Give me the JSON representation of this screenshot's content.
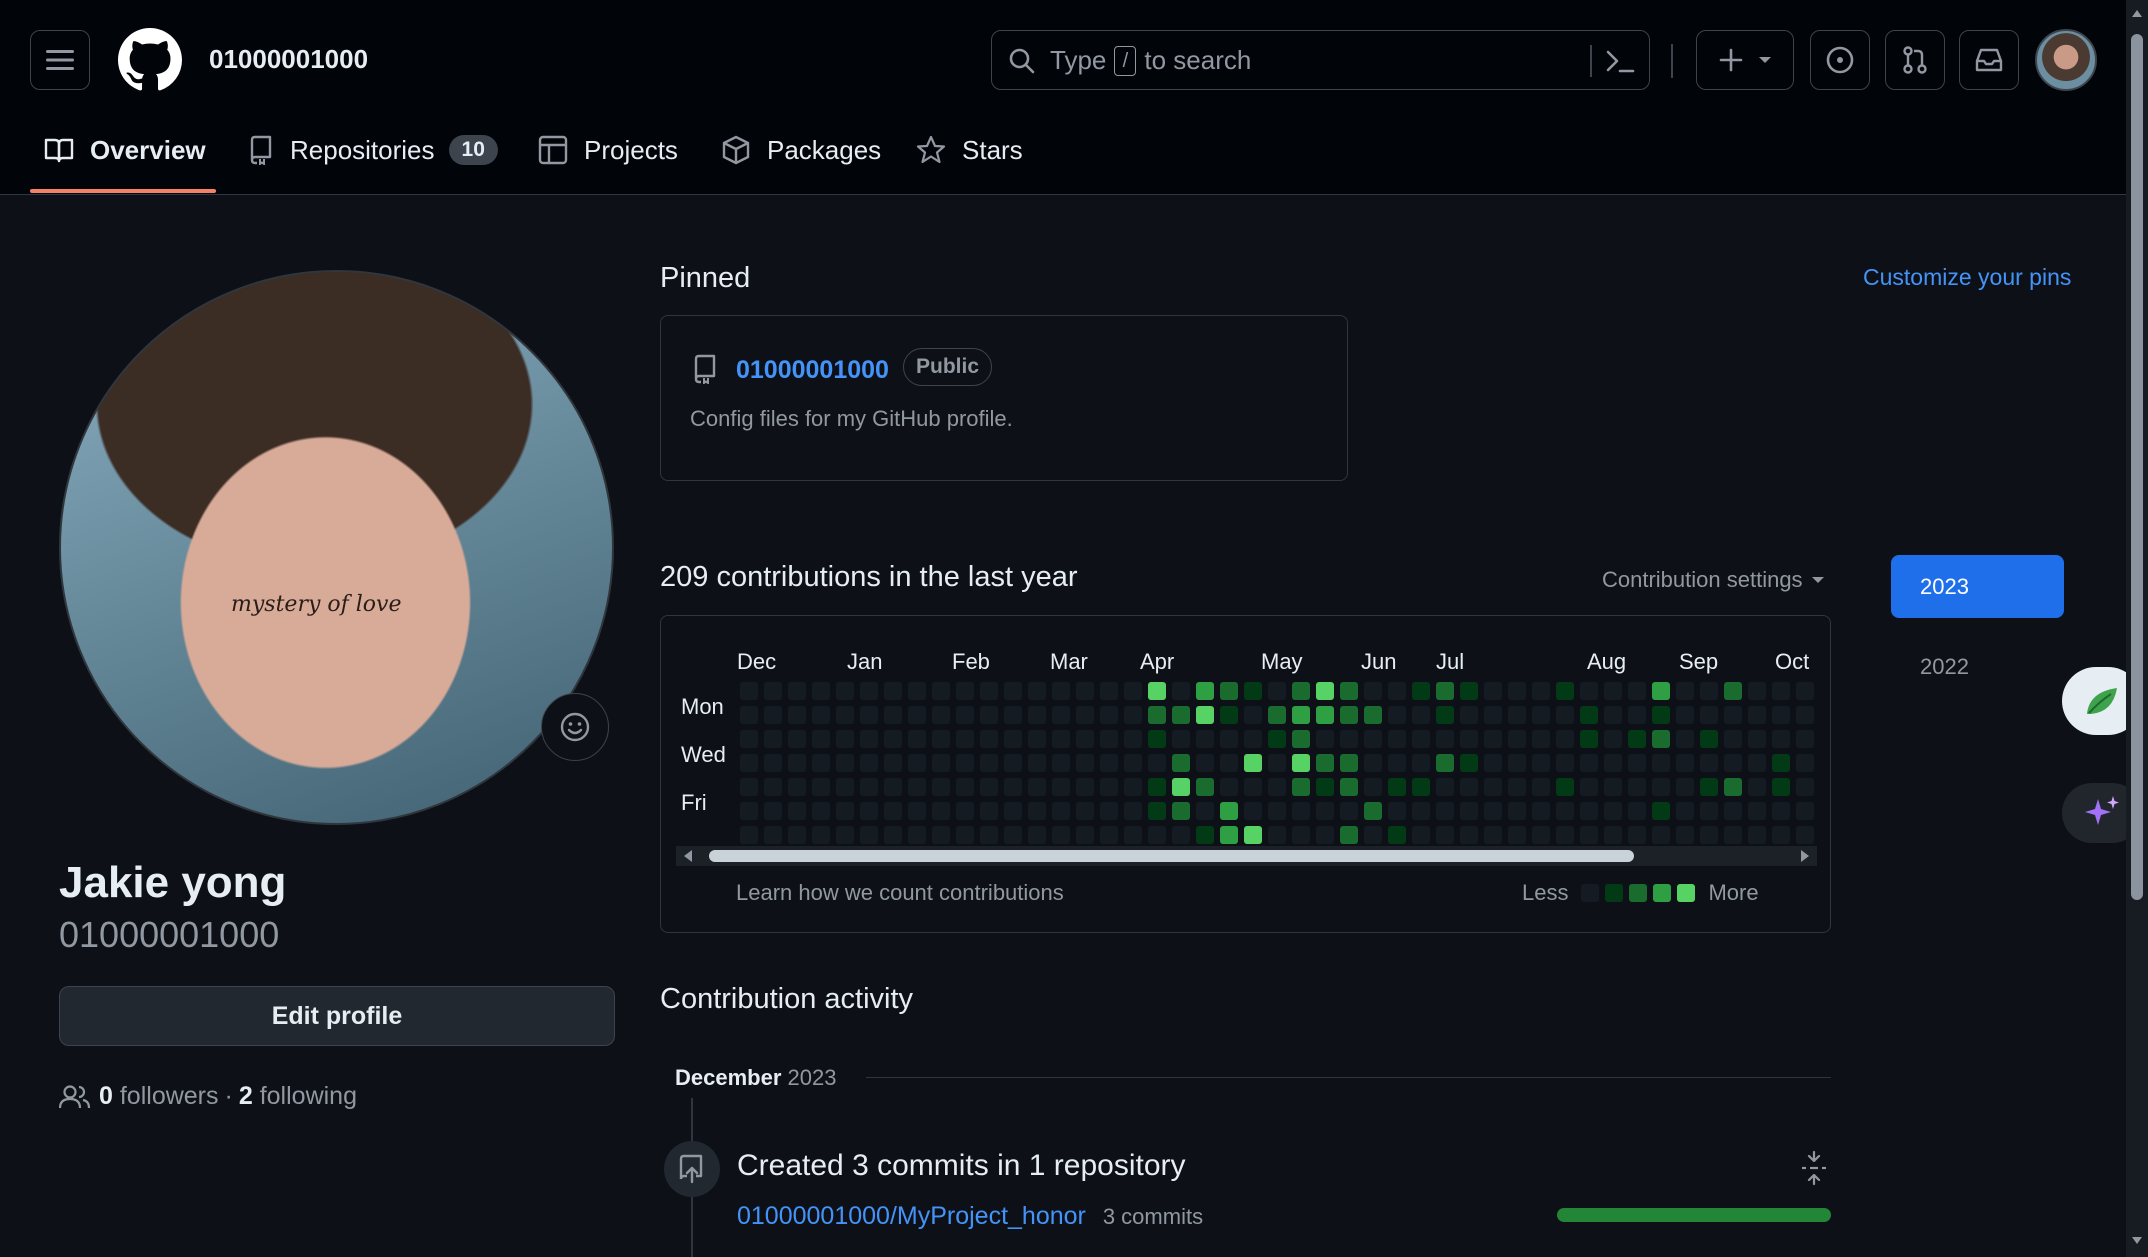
{
  "header": {
    "username": "01000001000",
    "search_placeholder_prefix": "Type",
    "search_key": "/",
    "search_placeholder_suffix": "to search"
  },
  "nav": {
    "overview": "Overview",
    "repositories": "Repositories",
    "repositories_count": "10",
    "projects": "Projects",
    "packages": "Packages",
    "stars": "Stars"
  },
  "profile": {
    "avatar_caption": "mystery of love",
    "name": "Jakie yong",
    "login": "01000001000",
    "edit_label": "Edit profile",
    "followers_count": "0",
    "followers_label": "followers",
    "separator": "·",
    "following_count": "2",
    "following_label": "following"
  },
  "pinned": {
    "title": "Pinned",
    "customize": "Customize your pins",
    "repo_name": "01000001000",
    "visibility": "Public",
    "description": "Config files for my GitHub profile."
  },
  "contributions": {
    "title": "209 contributions in the last year",
    "settings": "Contribution settings",
    "months": [
      "Dec",
      "Jan",
      "Feb",
      "Mar",
      "Apr",
      "May",
      "Jun",
      "Jul",
      "Aug",
      "Sep",
      "Oct"
    ],
    "days": [
      "Mon",
      "Wed",
      "Fri"
    ],
    "learn": "Learn how we count contributions",
    "less": "Less",
    "more": "More",
    "colors": [
      "#151b23",
      "#033a16",
      "#196c2e",
      "#2ea043",
      "#56d364"
    ]
  },
  "years": {
    "active": "2023",
    "other": "2022"
  },
  "activity": {
    "title": "Contribution activity",
    "month": "December",
    "year": "2023",
    "event_title": "Created 3 commits in 1 repository",
    "repo_link": "01000001000/MyProject_honor",
    "commits": "3 commits"
  }
}
